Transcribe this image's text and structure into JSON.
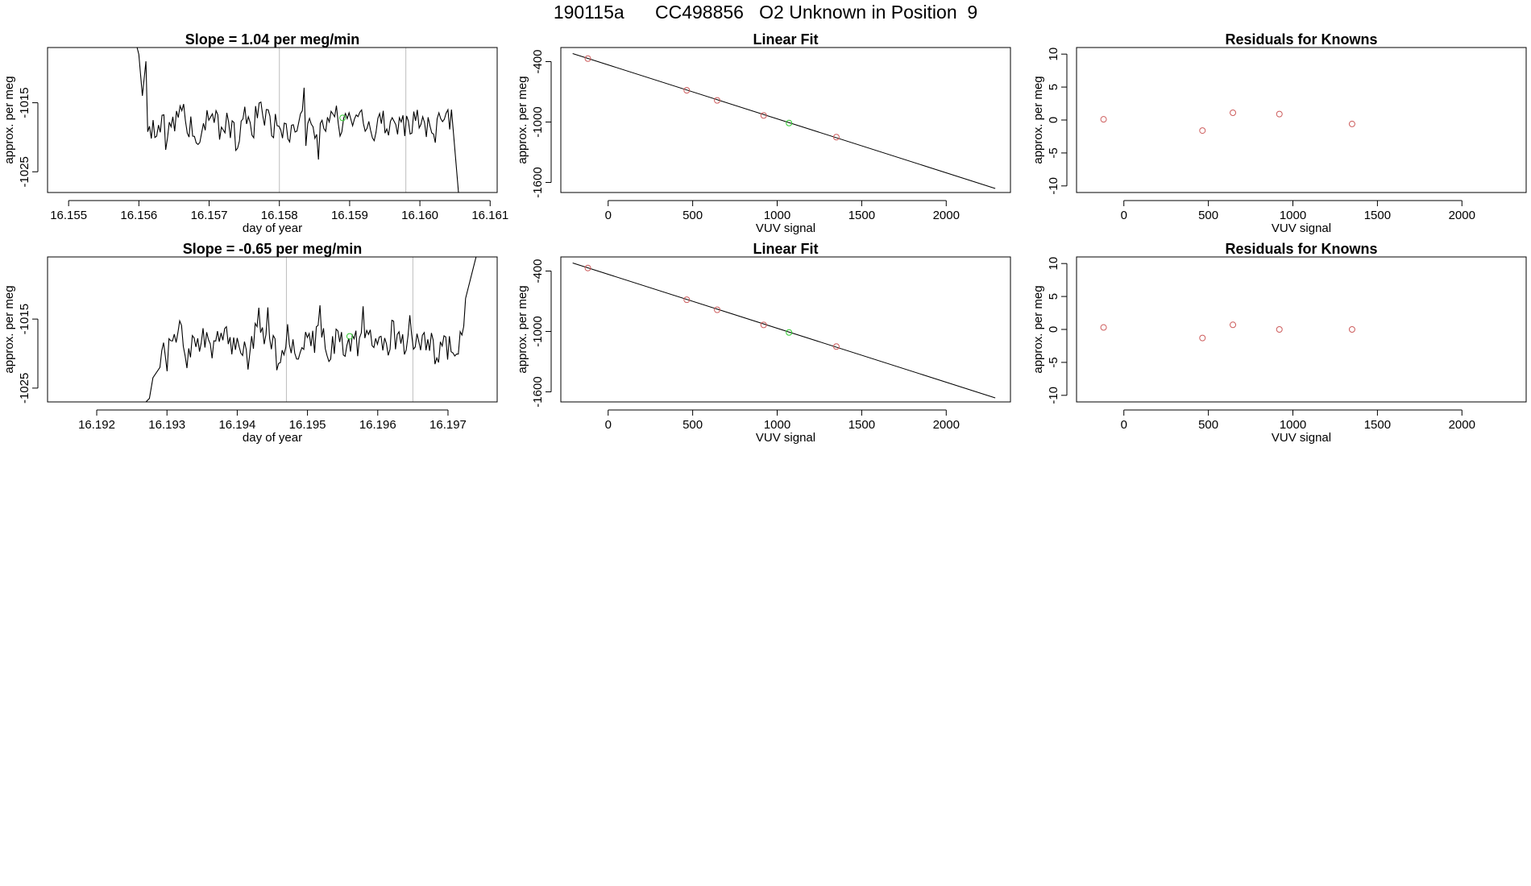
{
  "page": {
    "title_parts": [
      "190115a",
      "CC498856",
      "O2 Unknown in Position",
      "9"
    ]
  },
  "colors": {
    "known": "#cd5c5c",
    "unknown": "#32cd32",
    "line": "#000000",
    "vline": "#bebebe"
  },
  "chart_data": [
    {
      "type": "line",
      "title": "Slope =  1.04  per meg/min",
      "xlabel": "day of year",
      "ylabel": "approx. per meg",
      "xlim": [
        16.1547,
        16.1611
      ],
      "ylim": [
        -1028,
        -1007
      ],
      "xticks": [
        16.155,
        16.156,
        16.157,
        16.158,
        16.159,
        16.16,
        16.161
      ],
      "xtick_labels": [
        "16.155",
        "16.156",
        "16.157",
        "16.158",
        "16.159",
        "16.160",
        "16.161"
      ],
      "yticks": [
        -1025,
        -1015
      ],
      "ytick_labels": [
        "-1025",
        "-1015"
      ],
      "xlabel_visible": true,
      "vlines": [
        16.158,
        16.1598
      ],
      "unknown_point": {
        "x": 16.1589,
        "y": -1017.2
      },
      "seed": 1,
      "x_start": 16.1559,
      "x_end": 16.16055,
      "mean": -1018,
      "amp": 3.5,
      "head": [
        [
          16.1559,
          -1007
        ],
        [
          16.15595,
          -1006
        ],
        [
          16.156,
          -1008
        ],
        [
          16.15605,
          -1014
        ],
        [
          16.1561,
          -1009
        ]
      ],
      "tail": [
        [
          16.16045,
          -1016
        ],
        [
          16.16055,
          -1028
        ]
      ]
    },
    {
      "type": "scatter",
      "title": "Linear Fit",
      "xlabel": "VUV signal",
      "ylabel": "approx. per meg",
      "xlim": [
        -280,
        2380
      ],
      "ylim": [
        -1700,
        -260
      ],
      "xticks": [
        0,
        500,
        1000,
        1500,
        2000
      ],
      "xtick_labels": [
        "0",
        "500",
        "1000",
        "1500",
        "2000"
      ],
      "yticks": [
        -1600,
        -1000,
        -400
      ],
      "ytick_labels": [
        "-1600",
        "-1000",
        "-400"
      ],
      "fit_line": {
        "x": [
          -210,
          2290
        ],
        "y": [
          -320,
          -1660
        ]
      },
      "knowns": {
        "x": [
          -120,
          465,
          645,
          920,
          1350
        ],
        "y": [
          -370,
          -685,
          -785,
          -935,
          -1150
        ]
      },
      "unknowns": {
        "x": [
          1070
        ],
        "y": [
          -1010
        ]
      }
    },
    {
      "type": "scatter",
      "title": "Residuals for Knowns",
      "xlabel": "VUV signal",
      "ylabel": "approx. per meg",
      "xlim": [
        -280,
        2380
      ],
      "ylim": [
        -11,
        11
      ],
      "xticks": [
        0,
        500,
        1000,
        1500,
        2000
      ],
      "xtick_labels": [
        "0",
        "500",
        "1000",
        "1500",
        "2000"
      ],
      "yticks": [
        -10,
        -5,
        0,
        5,
        10
      ],
      "ytick_labels": [
        "-10",
        "-5",
        "0",
        "5",
        "10"
      ],
      "knowns": {
        "x": [
          -120,
          465,
          645,
          920,
          1350
        ],
        "y": [
          0.1,
          -1.6,
          1.1,
          0.9,
          -0.6
        ]
      }
    },
    {
      "type": "line",
      "title": "Slope =  -0.65  per meg/min",
      "xlabel": "day of year",
      "ylabel": "approx. per meg",
      "xlim": [
        16.1913,
        16.1977
      ],
      "ylim": [
        -1027,
        -1006
      ],
      "xticks": [
        16.192,
        16.193,
        16.194,
        16.195,
        16.196,
        16.197
      ],
      "xtick_labels": [
        "16.192",
        "16.193",
        "16.194",
        "16.195",
        "16.196",
        "16.197"
      ],
      "yticks": [
        -1025,
        -1015
      ],
      "ytick_labels": [
        "-1025",
        "-1015"
      ],
      "xlabel_visible": true,
      "vlines": [
        16.1947,
        16.1965
      ],
      "unknown_point": {
        "x": 16.1956,
        "y": -1017.5
      },
      "seed": 7,
      "x_start": 16.1929,
      "x_end": 16.1973,
      "mean": -1018.5,
      "amp": 3.3,
      "head": [
        [
          16.1913,
          -1027
        ],
        [
          16.1927,
          -1027
        ],
        [
          16.19275,
          -1026.5
        ],
        [
          16.1928,
          -1023.5
        ],
        [
          16.1929,
          -1022
        ]
      ],
      "tail": [
        [
          16.19725,
          -1012
        ],
        [
          16.1974,
          -1006
        ]
      ]
    },
    {
      "type": "scatter",
      "title": "Linear Fit",
      "xlabel": "VUV signal",
      "ylabel": "approx. per meg",
      "xlim": [
        -280,
        2380
      ],
      "ylim": [
        -1700,
        -260
      ],
      "xticks": [
        0,
        500,
        1000,
        1500,
        2000
      ],
      "xtick_labels": [
        "0",
        "500",
        "1000",
        "1500",
        "2000"
      ],
      "yticks": [
        -1600,
        -1000,
        -400
      ],
      "ytick_labels": [
        "-1600",
        "-1000",
        "-400"
      ],
      "fit_line": {
        "x": [
          -210,
          2290
        ],
        "y": [
          -320,
          -1660
        ]
      },
      "knowns": {
        "x": [
          -120,
          465,
          645,
          920,
          1350
        ],
        "y": [
          -370,
          -685,
          -785,
          -935,
          -1150
        ]
      },
      "unknowns": {
        "x": [
          1070
        ],
        "y": [
          -1010
        ]
      }
    },
    {
      "type": "scatter",
      "title": "Residuals for Knowns",
      "xlabel": "VUV signal",
      "ylabel": "approx. per meg",
      "xlim": [
        -280,
        2380
      ],
      "ylim": [
        -11,
        11
      ],
      "xticks": [
        0,
        500,
        1000,
        1500,
        2000
      ],
      "xtick_labels": [
        "0",
        "500",
        "1000",
        "1500",
        "2000"
      ],
      "yticks": [
        -10,
        -5,
        0,
        5,
        10
      ],
      "ytick_labels": [
        "-10",
        "-5",
        "0",
        "5",
        "10"
      ],
      "knowns": {
        "x": [
          -120,
          465,
          645,
          920,
          1350
        ],
        "y": [
          0.3,
          -1.3,
          0.7,
          0.0,
          0.0
        ]
      }
    }
  ]
}
